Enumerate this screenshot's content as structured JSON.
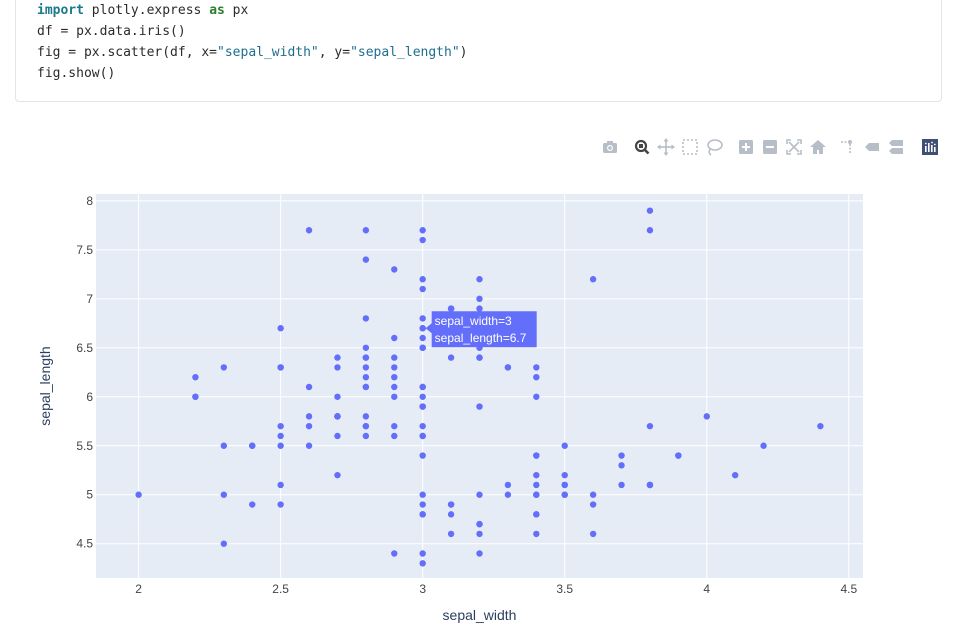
{
  "code": {
    "line1_kw1": "import",
    "line1_mid": " plotly.express ",
    "line1_kw2": "as",
    "line1_end": " px",
    "line2": "df = px.data.iris()",
    "line3_a": "fig = px.scatter(df, x=",
    "line3_s1": "\"sepal_width\"",
    "line3_b": ", y=",
    "line3_s2": "\"sepal_length\"",
    "line3_c": ")",
    "line4": "fig.show()"
  },
  "modebar": {
    "buttons": [
      "camera-icon",
      "zoom-icon",
      "pan-icon",
      "box-select-icon",
      "lasso-icon",
      "zoom-in-icon",
      "zoom-out-icon",
      "autoscale-icon",
      "reset-axes-icon",
      "spike-lines-icon",
      "hover-closest-icon",
      "hover-compare-icon",
      "plotly-logo-icon"
    ]
  },
  "tooltip": {
    "line1": "sepal_width=3",
    "line2": "sepal_length=6.7"
  },
  "colors": {
    "marker": "#636efa",
    "plot_bg": "#e5ecf6",
    "grid": "#ffffff"
  },
  "chart_data": {
    "type": "scatter",
    "xlabel": "sepal_width",
    "ylabel": "sepal_length",
    "xlim": [
      1.85,
      4.55
    ],
    "ylim": [
      4.15,
      8.07
    ],
    "xticks": [
      2,
      2.5,
      3,
      3.5,
      4,
      4.5
    ],
    "xtick_labels": [
      "2",
      "2.5",
      "3",
      "3.5",
      "4",
      "4.5"
    ],
    "yticks": [
      4.5,
      5,
      5.5,
      6,
      6.5,
      7,
      7.5,
      8
    ],
    "ytick_labels": [
      "4.5",
      "5",
      "5.5",
      "6",
      "6.5",
      "7",
      "7.5",
      "8"
    ],
    "grid": true,
    "highlight": [
      3,
      6.7
    ],
    "x": [
      3.5,
      3.0,
      3.2,
      3.1,
      3.6,
      3.9,
      3.4,
      3.4,
      2.9,
      3.1,
      3.7,
      3.4,
      3.0,
      3.0,
      4.0,
      4.4,
      3.9,
      3.5,
      3.8,
      3.8,
      3.4,
      3.7,
      3.6,
      3.3,
      3.4,
      3.0,
      3.4,
      3.5,
      3.4,
      3.2,
      3.1,
      3.4,
      4.1,
      4.2,
      3.1,
      3.2,
      3.5,
      3.6,
      3.0,
      3.4,
      3.5,
      2.3,
      3.2,
      3.5,
      3.8,
      3.0,
      3.8,
      3.2,
      3.7,
      3.3,
      3.2,
      3.2,
      3.1,
      2.3,
      2.8,
      2.8,
      3.3,
      2.4,
      2.9,
      2.7,
      2.0,
      3.0,
      2.2,
      2.9,
      2.9,
      3.1,
      3.0,
      2.7,
      2.2,
      2.5,
      3.2,
      2.8,
      2.5,
      2.8,
      2.9,
      3.0,
      2.8,
      3.0,
      2.9,
      2.6,
      2.4,
      2.4,
      2.7,
      2.7,
      3.0,
      3.4,
      3.1,
      2.3,
      3.0,
      2.5,
      2.6,
      3.0,
      2.6,
      2.3,
      2.7,
      3.0,
      2.9,
      2.9,
      2.5,
      2.8,
      3.3,
      2.7,
      3.0,
      2.9,
      3.0,
      3.0,
      2.5,
      2.9,
      2.5,
      3.6,
      3.2,
      2.7,
      3.0,
      2.5,
      2.8,
      3.2,
      3.0,
      3.8,
      2.6,
      2.2,
      3.2,
      2.8,
      2.8,
      2.7,
      3.3,
      3.2,
      2.8,
      3.0,
      2.8,
      3.0,
      2.8,
      3.8,
      2.8,
      2.8,
      2.6,
      3.0,
      3.4,
      3.1,
      3.0,
      3.1,
      3.1,
      3.1,
      2.7,
      3.2,
      3.3,
      3.0,
      2.5,
      3.0,
      3.4,
      3.0
    ],
    "y": [
      5.1,
      4.9,
      4.7,
      4.6,
      5.0,
      5.4,
      4.6,
      5.0,
      4.4,
      4.9,
      5.4,
      4.8,
      4.8,
      4.3,
      5.8,
      5.7,
      5.4,
      5.1,
      5.7,
      5.1,
      5.4,
      5.1,
      4.6,
      5.1,
      4.8,
      5.0,
      5.0,
      5.2,
      5.2,
      4.7,
      4.8,
      5.4,
      5.2,
      5.5,
      4.9,
      5.0,
      5.5,
      4.9,
      4.4,
      5.1,
      5.0,
      4.5,
      4.4,
      5.0,
      5.1,
      4.8,
      5.1,
      4.6,
      5.3,
      5.0,
      7.0,
      6.4,
      6.9,
      5.5,
      6.5,
      5.7,
      6.3,
      4.9,
      6.6,
      5.2,
      5.0,
      5.9,
      6.0,
      6.1,
      5.6,
      6.7,
      5.6,
      5.8,
      6.2,
      5.6,
      5.9,
      6.1,
      6.3,
      6.1,
      6.4,
      6.6,
      6.8,
      6.7,
      6.0,
      5.7,
      5.5,
      5.5,
      5.8,
      6.0,
      5.4,
      6.0,
      6.7,
      6.3,
      5.6,
      5.5,
      5.5,
      6.1,
      5.8,
      5.0,
      5.6,
      5.7,
      5.7,
      6.2,
      5.1,
      5.7,
      6.3,
      5.8,
      7.1,
      6.3,
      6.5,
      7.6,
      4.9,
      7.3,
      6.7,
      7.2,
      6.5,
      6.4,
      6.8,
      5.7,
      5.8,
      6.4,
      6.5,
      7.7,
      7.7,
      6.0,
      6.9,
      5.6,
      7.7,
      6.3,
      6.7,
      7.2,
      6.2,
      6.1,
      6.4,
      7.2,
      7.4,
      7.9,
      6.4,
      6.3,
      6.1,
      7.7,
      6.3,
      6.4,
      6.0,
      6.9,
      6.7,
      6.9,
      5.8,
      6.8,
      6.7,
      6.7,
      6.3,
      6.5,
      6.2,
      5.9
    ]
  }
}
